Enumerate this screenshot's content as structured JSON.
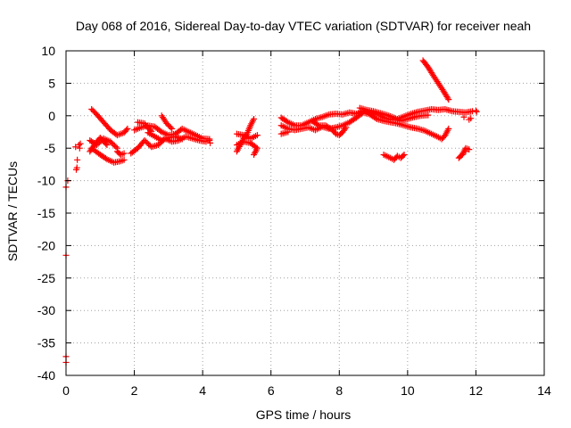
{
  "chart_data": {
    "type": "scatter",
    "title": "Day 068 of 2016, Sidereal Day-to-day VTEC variation (SDTVAR) for receiver neah",
    "xlabel": "GPS time / hours",
    "ylabel": "SDTVAR / TECUs",
    "xlim": [
      0,
      14
    ],
    "ylim": [
      -40,
      10
    ],
    "xticks": [
      0,
      2,
      4,
      6,
      8,
      10,
      12,
      14
    ],
    "yticks": [
      10,
      5,
      0,
      -5,
      -10,
      -15,
      -20,
      -25,
      -30,
      -35,
      -40
    ],
    "grid": true,
    "legend": "none",
    "marker": "plus",
    "color": "#ff0000",
    "isolated_points": [
      [
        0.0,
        -21.5
      ],
      [
        0.0,
        -37.1
      ],
      [
        0.0,
        -38.0
      ],
      [
        0.0,
        -11.0
      ],
      [
        0.05,
        -10.0
      ],
      [
        0.3,
        -8.3
      ],
      [
        0.32,
        -8.0
      ],
      [
        0.33,
        -6.8
      ],
      [
        0.38,
        -4.5
      ],
      [
        0.28,
        -4.8
      ],
      [
        0.4,
        -5.0
      ],
      [
        0.42,
        -4.3
      ],
      [
        4.2,
        -3.8
      ],
      [
        4.22,
        -4.2
      ],
      [
        11.65,
        -0.2
      ],
      [
        11.7,
        -5.5
      ],
      [
        12.0,
        0.8
      ],
      [
        12.02,
        0.6
      ],
      [
        11.8,
        -0.6
      ],
      [
        11.85,
        -0.4
      ]
    ],
    "segments": [
      {
        "name": "",
        "points": [
          [
            0.75,
            1.0
          ],
          [
            0.9,
            0.2
          ],
          [
            1.1,
            -1.0
          ],
          [
            1.3,
            -2.2
          ],
          [
            1.5,
            -3.0
          ],
          [
            1.7,
            -2.6
          ],
          [
            1.8,
            -2.0
          ]
        ]
      },
      {
        "name": "",
        "points": [
          [
            0.75,
            -5.0
          ],
          [
            1.0,
            -6.0
          ],
          [
            1.2,
            -6.7
          ],
          [
            1.4,
            -7.2
          ],
          [
            1.6,
            -7.0
          ],
          [
            1.7,
            -6.8
          ]
        ]
      },
      {
        "name": "",
        "points": [
          [
            0.7,
            -3.8
          ],
          [
            0.9,
            -4.5
          ],
          [
            1.1,
            -3.5
          ],
          [
            1.3,
            -4.0
          ],
          [
            1.5,
            -5.0
          ]
        ]
      },
      {
        "name": "",
        "points": [
          [
            0.7,
            -5.5
          ],
          [
            0.9,
            -4.0
          ],
          [
            1.0,
            -3.4
          ],
          [
            1.2,
            -4.5
          ]
        ]
      },
      {
        "name": "",
        "points": [
          [
            1.5,
            -5.5
          ],
          [
            1.6,
            -6.0
          ],
          [
            1.7,
            -5.8
          ]
        ]
      },
      {
        "name": "",
        "points": [
          [
            1.9,
            -5.8
          ],
          [
            2.1,
            -5.0
          ],
          [
            2.3,
            -3.8
          ],
          [
            2.5,
            -4.8
          ],
          [
            2.7,
            -4.5
          ],
          [
            2.9,
            -3.5
          ],
          [
            3.1,
            -4.0
          ],
          [
            3.3,
            -3.8
          ],
          [
            3.5,
            -3.2
          ],
          [
            3.7,
            -3.5
          ],
          [
            3.9,
            -3.8
          ],
          [
            4.1,
            -4.0
          ]
        ]
      },
      {
        "name": "",
        "points": [
          [
            2.0,
            -2.2
          ],
          [
            2.2,
            -1.8
          ],
          [
            2.4,
            -1.5
          ],
          [
            2.6,
            -1.7
          ],
          [
            2.8,
            -2.5
          ],
          [
            3.0,
            -3.0
          ],
          [
            3.2,
            -2.8
          ],
          [
            3.4,
            -2.0
          ],
          [
            3.6,
            -2.5
          ],
          [
            3.8,
            -3.0
          ],
          [
            4.0,
            -3.5
          ],
          [
            4.2,
            -3.6
          ]
        ]
      },
      {
        "name": "",
        "points": [
          [
            2.1,
            -1.0
          ],
          [
            2.3,
            -1.2
          ],
          [
            2.4,
            -1.9
          ],
          [
            2.5,
            -2.4
          ]
        ]
      },
      {
        "name": "",
        "points": [
          [
            2.4,
            -2.6
          ],
          [
            2.6,
            -3.2
          ],
          [
            2.8,
            -3.8
          ],
          [
            3.0,
            -3.4
          ],
          [
            3.2,
            -3.2
          ],
          [
            3.4,
            -3.6
          ]
        ]
      },
      {
        "name": "",
        "points": [
          [
            2.8,
            0.0
          ],
          [
            2.95,
            -1.2
          ],
          [
            3.1,
            -2.0
          ]
        ]
      },
      {
        "name": "",
        "points": [
          [
            5.0,
            -5.5
          ],
          [
            5.1,
            -4.5
          ],
          [
            5.2,
            -3.5
          ],
          [
            5.3,
            -2.8
          ],
          [
            5.4,
            -1.5
          ],
          [
            5.5,
            -0.5
          ]
        ]
      },
      {
        "name": "",
        "points": [
          [
            5.0,
            -2.8
          ],
          [
            5.2,
            -3.0
          ],
          [
            5.4,
            -3.5
          ],
          [
            5.6,
            -3.0
          ]
        ]
      },
      {
        "name": "",
        "points": [
          [
            5.0,
            -4.5
          ],
          [
            5.2,
            -4.0
          ],
          [
            5.4,
            -4.2
          ],
          [
            5.6,
            -5.0
          ],
          [
            5.5,
            -6.0
          ]
        ]
      },
      {
        "name": "",
        "points": [
          [
            6.3,
            -0.3
          ],
          [
            6.5,
            -1.0
          ],
          [
            6.7,
            -1.5
          ],
          [
            6.9,
            -1.5
          ],
          [
            7.1,
            -1.0
          ],
          [
            7.3,
            -0.5
          ],
          [
            7.5,
            -0.2
          ],
          [
            7.7,
            0.2
          ],
          [
            7.9,
            0.3
          ],
          [
            8.1,
            0.2
          ],
          [
            8.3,
            0.5
          ],
          [
            8.5,
            0.3
          ],
          [
            8.7,
            0.8
          ],
          [
            8.9,
            0.5
          ],
          [
            9.1,
            0.3
          ],
          [
            9.3,
            -0.3
          ],
          [
            9.5,
            -0.6
          ],
          [
            9.7,
            -0.5
          ],
          [
            9.9,
            -0.1
          ],
          [
            10.1,
            0.3
          ],
          [
            10.3,
            0.6
          ],
          [
            10.5,
            0.8
          ],
          [
            10.7,
            1.0
          ],
          [
            10.9,
            0.9
          ],
          [
            11.1,
            1.0
          ],
          [
            11.3,
            0.7
          ],
          [
            11.5,
            0.6
          ],
          [
            11.7,
            0.5
          ],
          [
            11.9,
            0.7
          ]
        ]
      },
      {
        "name": "",
        "points": [
          [
            6.3,
            -1.5
          ],
          [
            6.5,
            -2.0
          ],
          [
            6.7,
            -2.2
          ],
          [
            6.9,
            -2.0
          ],
          [
            7.1,
            -1.8
          ],
          [
            7.3,
            -2.2
          ],
          [
            7.5,
            -1.7
          ],
          [
            7.7,
            -2.0
          ],
          [
            7.9,
            -1.8
          ],
          [
            8.1,
            -1.5
          ],
          [
            8.3,
            -1.0
          ],
          [
            8.5,
            -0.3
          ],
          [
            8.7,
            0.5
          ],
          [
            8.9,
            0.2
          ],
          [
            9.1,
            -0.5
          ],
          [
            9.3,
            -0.8
          ],
          [
            9.5,
            -1.0
          ],
          [
            9.7,
            -1.2
          ],
          [
            9.9,
            -1.5
          ],
          [
            10.1,
            -1.8
          ],
          [
            10.3,
            -2.0
          ],
          [
            10.5,
            -2.3
          ],
          [
            10.7,
            -2.8
          ],
          [
            10.9,
            -3.3
          ],
          [
            11.0,
            -3.6
          ],
          [
            11.1,
            -3.0
          ],
          [
            11.2,
            -2.0
          ]
        ]
      },
      {
        "name": "",
        "points": [
          [
            6.3,
            -2.8
          ],
          [
            6.5,
            -2.5
          ]
        ]
      },
      {
        "name": "",
        "points": [
          [
            7.2,
            -0.8
          ],
          [
            7.4,
            -1.5
          ],
          [
            7.6,
            -1.5
          ],
          [
            7.8,
            -2.2
          ],
          [
            7.9,
            -2.8
          ],
          [
            8.0,
            -3.0
          ],
          [
            8.1,
            -2.5
          ],
          [
            8.2,
            -1.8
          ]
        ]
      },
      {
        "name": "",
        "points": [
          [
            8.6,
            1.2
          ],
          [
            8.8,
            0.9
          ],
          [
            9.0,
            0.7
          ],
          [
            9.2,
            0.4
          ],
          [
            9.4,
            0.1
          ],
          [
            9.6,
            -0.3
          ],
          [
            9.8,
            -0.8
          ],
          [
            10.0,
            -0.5
          ],
          [
            10.2,
            -0.2
          ],
          [
            10.4,
            0.0
          ],
          [
            10.6,
            0.1
          ]
        ]
      },
      {
        "name": "",
        "points": [
          [
            9.3,
            -6.0
          ],
          [
            9.5,
            -6.5
          ],
          [
            9.6,
            -6.8
          ],
          [
            9.7,
            -6.2
          ],
          [
            9.8,
            -6.5
          ],
          [
            9.9,
            -6.0
          ]
        ]
      },
      {
        "name": "",
        "points": [
          [
            10.45,
            8.5
          ],
          [
            10.6,
            7.5
          ],
          [
            10.75,
            6.2
          ],
          [
            10.9,
            5.0
          ],
          [
            11.05,
            3.8
          ],
          [
            11.2,
            2.5
          ]
        ]
      },
      {
        "name": "",
        "points": [
          [
            11.5,
            -6.5
          ],
          [
            11.6,
            -6.0
          ],
          [
            11.7,
            -5.0
          ],
          [
            11.8,
            -5.2
          ]
        ]
      }
    ]
  }
}
